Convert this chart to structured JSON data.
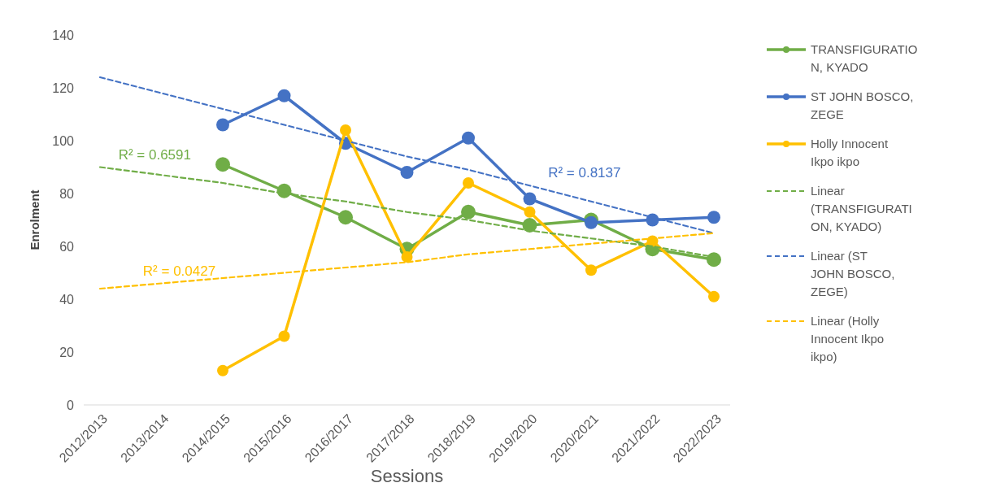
{
  "chart_data": {
    "type": "line",
    "xlabel": "Sessions",
    "ylabel": "Enrolment",
    "categories": [
      "2012/2013",
      "2013/2014",
      "2014/2015",
      "2015/2016",
      "2016/2017",
      "2017/2018",
      "2018/2019",
      "2019/2020",
      "2020/2021",
      "2021/2022",
      "2022/2023"
    ],
    "series": [
      {
        "name": "TRANSFIGURATION, KYADO",
        "color": "#70ad47",
        "marker": "circle",
        "values": [
          null,
          null,
          91,
          81,
          71,
          59,
          73,
          68,
          70,
          59,
          55
        ]
      },
      {
        "name": "ST JOHN BOSCO, ZEGE",
        "color": "#4472c4",
        "marker": "circle",
        "values": [
          null,
          null,
          106,
          117,
          99,
          88,
          101,
          78,
          69,
          70,
          71
        ]
      },
      {
        "name": "Holly Innocent Ikpo ikpo",
        "color": "#ffc000",
        "marker": "circle",
        "values": [
          null,
          null,
          13,
          26,
          104,
          56,
          84,
          73,
          51,
          62,
          41
        ]
      },
      {
        "name": "Linear (TRANSFIGURATION, KYADO)",
        "color": "#70ad47",
        "marker": "none",
        "line_style": "dashed",
        "values": [
          90,
          87,
          84,
          80,
          77,
          73,
          70,
          66,
          63,
          60,
          56
        ]
      },
      {
        "name": "Linear (ST JOHN BOSCO, ZEGE)",
        "color": "#4472c4",
        "marker": "none",
        "line_style": "dashed",
        "values": [
          124,
          118,
          112,
          106,
          100,
          94,
          89,
          83,
          77,
          71,
          65
        ]
      },
      {
        "name": "Linear (Holly Innocent Ikpo ikpo)",
        "color": "#ffc000",
        "marker": "none",
        "line_style": "dashed",
        "values": [
          44,
          46,
          48,
          50,
          52,
          54,
          57,
          59,
          61,
          63,
          65
        ]
      }
    ],
    "annotations": [
      "R² = 0.6591",
      "R² = 0.8137",
      "R² = 0.0427"
    ],
    "ylim": [
      0,
      140
    ],
    "yticks": [
      0,
      20,
      40,
      60,
      80,
      100,
      120,
      140
    ],
    "grid": false,
    "legend": "right"
  }
}
